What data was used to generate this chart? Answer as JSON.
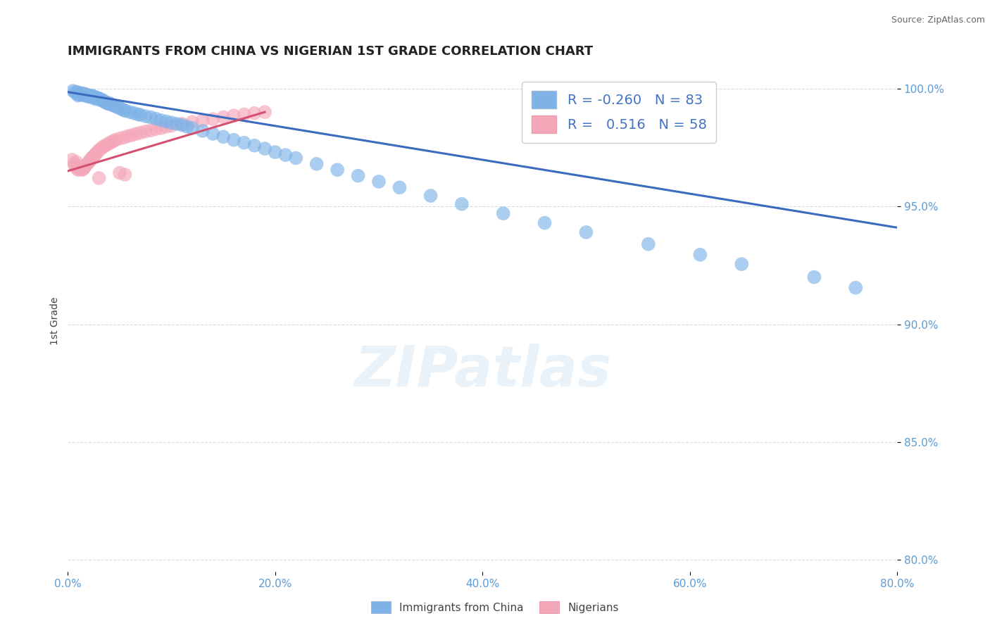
{
  "title": "IMMIGRANTS FROM CHINA VS NIGERIAN 1ST GRADE CORRELATION CHART",
  "source": "Source: ZipAtlas.com",
  "ylabel": "1st Grade",
  "xlim": [
    0.0,
    0.8
  ],
  "ylim": [
    0.795,
    1.008
  ],
  "xtick_labels": [
    "0.0%",
    "20.0%",
    "40.0%",
    "60.0%",
    "80.0%"
  ],
  "xtick_vals": [
    0.0,
    0.2,
    0.4,
    0.6,
    0.8
  ],
  "ytick_labels": [
    "80.0%",
    "85.0%",
    "90.0%",
    "95.0%",
    "100.0%"
  ],
  "ytick_vals": [
    0.8,
    0.85,
    0.9,
    0.95,
    1.0
  ],
  "blue_color": "#7fb3e8",
  "pink_color": "#f4a7b9",
  "blue_line_color": "#3a6bbf",
  "pink_line_color": "#d45070",
  "legend_blue_r": "-0.260",
  "legend_blue_n": "83",
  "legend_pink_r": "0.516",
  "legend_pink_n": "58",
  "legend_label_blue": "Immigrants from China",
  "legend_label_pink": "Nigerians",
  "watermark": "ZIPatlas",
  "blue_scatter_x": [
    0.005,
    0.007,
    0.008,
    0.009,
    0.01,
    0.01,
    0.011,
    0.012,
    0.013,
    0.014,
    0.015,
    0.016,
    0.017,
    0.018,
    0.019,
    0.02,
    0.021,
    0.022,
    0.023,
    0.024,
    0.025,
    0.026,
    0.027,
    0.028,
    0.029,
    0.03,
    0.031,
    0.032,
    0.033,
    0.034,
    0.035,
    0.036,
    0.037,
    0.038,
    0.039,
    0.04,
    0.042,
    0.044,
    0.046,
    0.048,
    0.05,
    0.052,
    0.054,
    0.056,
    0.06,
    0.064,
    0.068,
    0.07,
    0.075,
    0.08,
    0.085,
    0.09,
    0.095,
    0.1,
    0.105,
    0.11,
    0.115,
    0.12,
    0.13,
    0.14,
    0.15,
    0.16,
    0.17,
    0.18,
    0.19,
    0.2,
    0.21,
    0.22,
    0.24,
    0.26,
    0.28,
    0.3,
    0.32,
    0.35,
    0.38,
    0.42,
    0.46,
    0.5,
    0.56,
    0.61,
    0.65,
    0.72,
    0.76
  ],
  "blue_scatter_y": [
    0.999,
    0.9985,
    0.998,
    0.9985,
    0.9975,
    0.997,
    0.998,
    0.9975,
    0.998,
    0.9972,
    0.9978,
    0.9972,
    0.9976,
    0.9968,
    0.9972,
    0.9968,
    0.9964,
    0.997,
    0.9965,
    0.9968,
    0.996,
    0.9965,
    0.9955,
    0.996,
    0.9958,
    0.9958,
    0.9955,
    0.995,
    0.9952,
    0.9948,
    0.9945,
    0.9942,
    0.994,
    0.9938,
    0.9935,
    0.9938,
    0.9932,
    0.9928,
    0.9925,
    0.992,
    0.9918,
    0.9912,
    0.9908,
    0.9905,
    0.99,
    0.9895,
    0.989,
    0.9888,
    0.9882,
    0.9878,
    0.9872,
    0.9865,
    0.986,
    0.9855,
    0.985,
    0.9845,
    0.9838,
    0.9832,
    0.982,
    0.9808,
    0.9795,
    0.9782,
    0.977,
    0.9758,
    0.9745,
    0.973,
    0.9718,
    0.9705,
    0.968,
    0.9655,
    0.963,
    0.9605,
    0.958,
    0.9545,
    0.951,
    0.947,
    0.943,
    0.939,
    0.934,
    0.9295,
    0.9255,
    0.92,
    0.9155
  ],
  "pink_scatter_x": [
    0.004,
    0.006,
    0.007,
    0.008,
    0.009,
    0.01,
    0.01,
    0.011,
    0.012,
    0.013,
    0.014,
    0.015,
    0.016,
    0.017,
    0.018,
    0.019,
    0.02,
    0.021,
    0.022,
    0.023,
    0.024,
    0.025,
    0.026,
    0.027,
    0.028,
    0.03,
    0.032,
    0.034,
    0.036,
    0.038,
    0.04,
    0.042,
    0.044,
    0.046,
    0.05,
    0.054,
    0.058,
    0.062,
    0.066,
    0.07,
    0.075,
    0.08,
    0.085,
    0.09,
    0.095,
    0.1,
    0.11,
    0.12,
    0.13,
    0.14,
    0.15,
    0.16,
    0.17,
    0.18,
    0.19,
    0.05,
    0.055,
    0.03
  ],
  "pink_scatter_y": [
    0.9698,
    0.968,
    0.9672,
    0.9688,
    0.966,
    0.967,
    0.9655,
    0.9665,
    0.9662,
    0.9658,
    0.9655,
    0.966,
    0.9665,
    0.9672,
    0.9678,
    0.9682,
    0.9688,
    0.9692,
    0.9698,
    0.9705,
    0.9708,
    0.9712,
    0.9718,
    0.9722,
    0.9728,
    0.9738,
    0.9745,
    0.9752,
    0.9758,
    0.9762,
    0.9768,
    0.9772,
    0.9778,
    0.9782,
    0.9788,
    0.9792,
    0.9798,
    0.9802,
    0.9808,
    0.9812,
    0.9818,
    0.9822,
    0.9828,
    0.9832,
    0.9838,
    0.9842,
    0.985,
    0.9858,
    0.9864,
    0.987,
    0.9878,
    0.9885,
    0.989,
    0.9895,
    0.99,
    0.9642,
    0.9635,
    0.962
  ],
  "blue_trend_x": [
    0.0,
    0.8
  ],
  "blue_trend_y": [
    0.9985,
    0.941
  ],
  "pink_trend_x": [
    0.0,
    0.19
  ],
  "pink_trend_y": [
    0.965,
    0.99
  ]
}
